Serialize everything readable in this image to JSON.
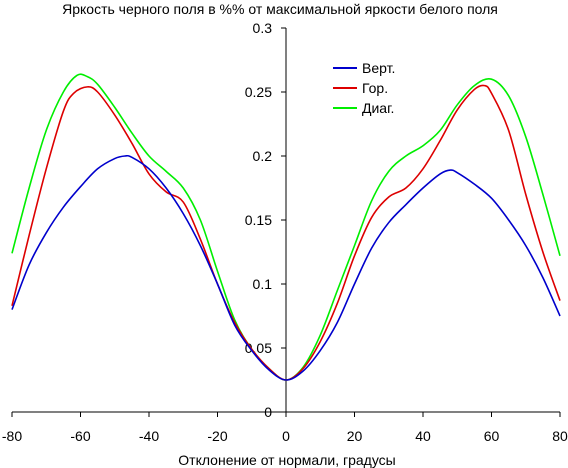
{
  "chart_data": {
    "type": "line",
    "title": "Яркость черного поля в %% от максимальной яркости белого поля",
    "xlabel": "Отклонение от нормали, градусы",
    "ylabel": "",
    "xlim": [
      -80,
      80
    ],
    "ylim": [
      0,
      0.3
    ],
    "x_ticks": [
      -80,
      -60,
      -40,
      -20,
      0,
      20,
      40,
      60,
      80
    ],
    "x_tick_labels": [
      "-80",
      "-60",
      "-40",
      "-20",
      "0",
      "20",
      "40",
      "60",
      "80"
    ],
    "y_ticks": [
      0,
      0.05,
      0.1,
      0.15,
      0.2,
      0.25,
      0.3
    ],
    "y_tick_labels": [
      "0",
      "0.05",
      "0.1",
      "0.15",
      "0.2",
      "0.25",
      "0.3"
    ],
    "grid": false,
    "legend_position": "top-right",
    "series": [
      {
        "name": "Верт.",
        "color": "#0000cc",
        "x": [
          -80,
          -75,
          -70,
          -65,
          -60,
          -55,
          -50,
          -47,
          -45,
          -40,
          -35,
          -30,
          -25,
          -20,
          -15,
          -10,
          -5,
          0,
          5,
          10,
          15,
          20,
          25,
          30,
          35,
          40,
          45,
          48,
          50,
          55,
          60,
          65,
          70,
          75,
          80
        ],
        "y": [
          0.08,
          0.115,
          0.14,
          0.16,
          0.176,
          0.19,
          0.198,
          0.2,
          0.199,
          0.19,
          0.175,
          0.155,
          0.13,
          0.1,
          0.068,
          0.048,
          0.033,
          0.025,
          0.032,
          0.048,
          0.07,
          0.1,
          0.128,
          0.148,
          0.162,
          0.175,
          0.186,
          0.189,
          0.187,
          0.178,
          0.167,
          0.15,
          0.13,
          0.105,
          0.075
        ]
      },
      {
        "name": "Гор.",
        "color": "#dd0000",
        "x": [
          -80,
          -75,
          -70,
          -65,
          -62,
          -58,
          -55,
          -50,
          -45,
          -40,
          -35,
          -30,
          -25,
          -20,
          -15,
          -10,
          -5,
          0,
          5,
          10,
          15,
          20,
          25,
          30,
          35,
          40,
          45,
          50,
          55,
          58,
          60,
          65,
          70,
          75,
          80
        ],
        "y": [
          0.083,
          0.138,
          0.19,
          0.235,
          0.249,
          0.254,
          0.25,
          0.232,
          0.21,
          0.186,
          0.172,
          0.164,
          0.135,
          0.1,
          0.07,
          0.049,
          0.034,
          0.025,
          0.034,
          0.055,
          0.085,
          0.122,
          0.152,
          0.168,
          0.175,
          0.19,
          0.212,
          0.236,
          0.252,
          0.255,
          0.249,
          0.22,
          0.17,
          0.125,
          0.087
        ]
      },
      {
        "name": "Диаг.",
        "color": "#00ee00",
        "x": [
          -80,
          -75,
          -70,
          -65,
          -61,
          -58,
          -55,
          -50,
          -45,
          -40,
          -35,
          -30,
          -25,
          -20,
          -15,
          -10,
          -5,
          0,
          5,
          10,
          15,
          20,
          25,
          30,
          35,
          40,
          45,
          50,
          55,
          60,
          65,
          70,
          75,
          80
        ],
        "y": [
          0.124,
          0.175,
          0.22,
          0.25,
          0.263,
          0.262,
          0.256,
          0.238,
          0.218,
          0.2,
          0.188,
          0.175,
          0.15,
          0.11,
          0.072,
          0.049,
          0.034,
          0.025,
          0.035,
          0.06,
          0.095,
          0.13,
          0.165,
          0.188,
          0.2,
          0.208,
          0.22,
          0.24,
          0.255,
          0.26,
          0.247,
          0.215,
          0.17,
          0.122
        ]
      }
    ]
  }
}
